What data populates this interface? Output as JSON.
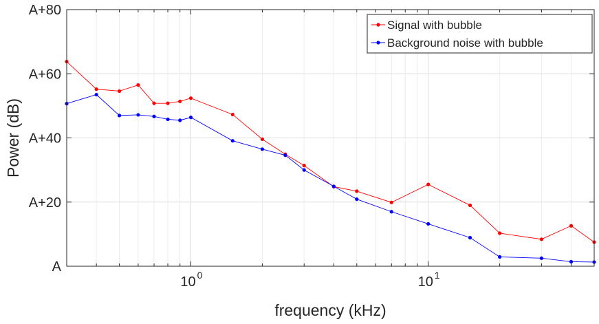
{
  "chart_data": {
    "type": "line",
    "xscale": "log",
    "xlabel": "frequency (kHz)",
    "ylabel": "Power (dB)",
    "xlim": [
      0.3,
      50
    ],
    "ylim": [
      0,
      80
    ],
    "x_tick_values": [
      1,
      10
    ],
    "x_tick_labels": [
      {
        "base": "10",
        "exp": "0"
      },
      {
        "base": "10",
        "exp": "1"
      }
    ],
    "y_ticks": [
      0,
      20,
      40,
      60,
      80
    ],
    "y_tick_labels": [
      "A",
      "A+20",
      "A+40",
      "A+60",
      "A+80"
    ],
    "grid": true,
    "legend_position": "top-right",
    "x": [
      0.3,
      0.4,
      0.5,
      0.6,
      0.7,
      0.8,
      0.9,
      1,
      1.5,
      2,
      2.5,
      3,
      4,
      5,
      7,
      10,
      15,
      20,
      30,
      40,
      50
    ],
    "series": [
      {
        "name": "Signal with bubble",
        "color": "#ff0000",
        "values": [
          63.8,
          55.2,
          54.6,
          56.5,
          50.8,
          50.8,
          51.4,
          52.4,
          47.3,
          39.6,
          34.9,
          31.4,
          24.8,
          23.4,
          19.9,
          25.5,
          19,
          10.3,
          8.4,
          12.6,
          7.5
        ]
      },
      {
        "name": "Background noise with bubble",
        "color": "#0000ff",
        "values": [
          50.7,
          53.5,
          47,
          47.2,
          46.7,
          45.8,
          45.5,
          46.4,
          39.1,
          36.5,
          34.6,
          30,
          24.9,
          20.9,
          17,
          13.2,
          8.9,
          2.9,
          2.5,
          1.4,
          1.3
        ]
      }
    ]
  }
}
